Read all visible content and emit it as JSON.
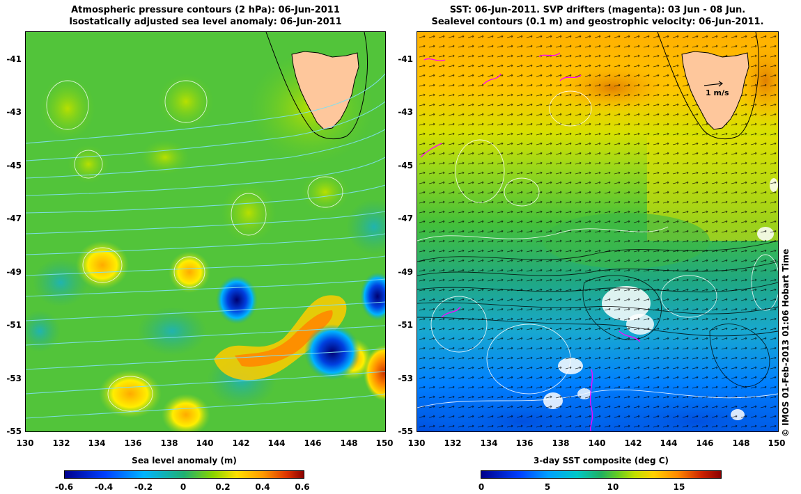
{
  "left": {
    "title_line1": "Atmospheric pressure contours (2 hPa): 06-Jun-2011",
    "title_line2": "Isostatically adjusted sea level anomaly: 06-Jun-2011",
    "colorbar_label": "Sea level anomaly (m)",
    "colorbar_ticks": [
      "-0.6",
      "-0.4",
      "-0.2",
      "0",
      "0.2",
      "0.4",
      "0.6"
    ],
    "colors": [
      "#00008b",
      "#0050ff",
      "#00c8ff",
      "#20b070",
      "#44cc22",
      "#aadd00",
      "#ffee00",
      "#ffaa00",
      "#ee4400",
      "#8b0000"
    ]
  },
  "right": {
    "title_line1": "SST: 06-Jun-2011. SVP drifters (magenta): 03 Jun - 08 Jun.",
    "title_line2": "Sealevel contours (0.1 m) and geostrophic velocity: 06-Jun-2011.",
    "colorbar_label": "3-day SST composite (deg C)",
    "colorbar_ticks": [
      "0",
      "5",
      "10",
      "15"
    ],
    "velocity_scale_label": "1 m/s",
    "colors": [
      "#00008b",
      "#0050ff",
      "#00a0ff",
      "#00c8c8",
      "#20b060",
      "#44cc22",
      "#aadd00",
      "#ffcc00",
      "#ff8800",
      "#cc2200",
      "#8b0000"
    ]
  },
  "axes": {
    "lat_ticks": [
      "-41",
      "-43",
      "-45",
      "-47",
      "-49",
      "-51",
      "-53",
      "-55"
    ],
    "lon_ticks": [
      "130",
      "132",
      "134",
      "136",
      "138",
      "140",
      "142",
      "144",
      "146",
      "148",
      "150"
    ]
  },
  "map_data": {
    "region": "Southern Ocean south of Tasmania",
    "lon_range": [
      130,
      150
    ],
    "lat_range": [
      -55,
      -40
    ],
    "land_color": "#fec79c",
    "drifter_color": "#ff00ff",
    "contour_color_left": "#7fe0f0",
    "contour_color_right": "#ffffff"
  },
  "credit": "© IMOS 01-Feb-2013 01:06 Hobart Time"
}
